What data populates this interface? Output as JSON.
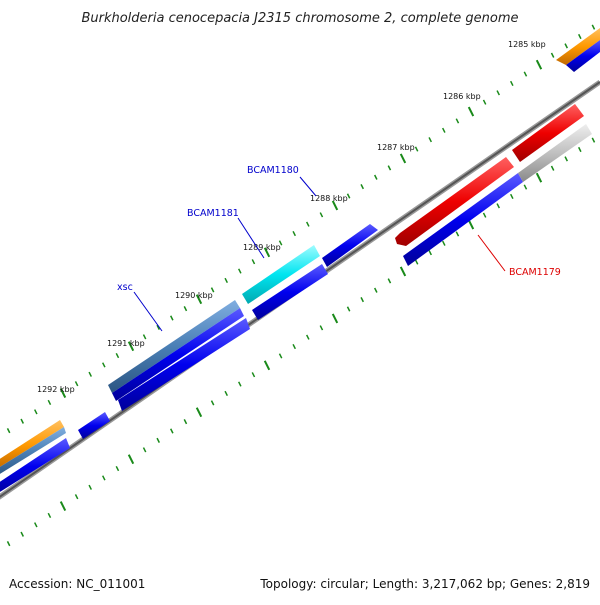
{
  "title": "Burkholderia cenocepacia J2315 chromosome 2, complete genome",
  "footer": {
    "accession": "Accession: NC_011001",
    "summary": "Topology: circular; Length: 3,217,062 bp; Genes: 2,819"
  },
  "tick_labels": [
    "1285 kbp",
    "1286 kbp",
    "1287 kbp",
    "1288 kbp",
    "1289 kbp",
    "1290 kbp",
    "1291 kbp",
    "1292 kbp"
  ],
  "gene_labels": [
    {
      "text": "BCAM1180",
      "color": "#0000cc"
    },
    {
      "text": "BCAM1181",
      "color": "#0000cc"
    },
    {
      "text": "xsc",
      "color": "#0000cc"
    },
    {
      "text": "BCAM1179",
      "color": "#dd0000"
    }
  ],
  "colors": {
    "cds": "#0000ee",
    "orange": "#ff9900",
    "steel": "#4a7fb5",
    "cyan": "#00e5f0",
    "red": "#ee0000",
    "grey": "#c0c0c0",
    "tick": "#1a8a1a",
    "backbone": "#666666"
  }
}
